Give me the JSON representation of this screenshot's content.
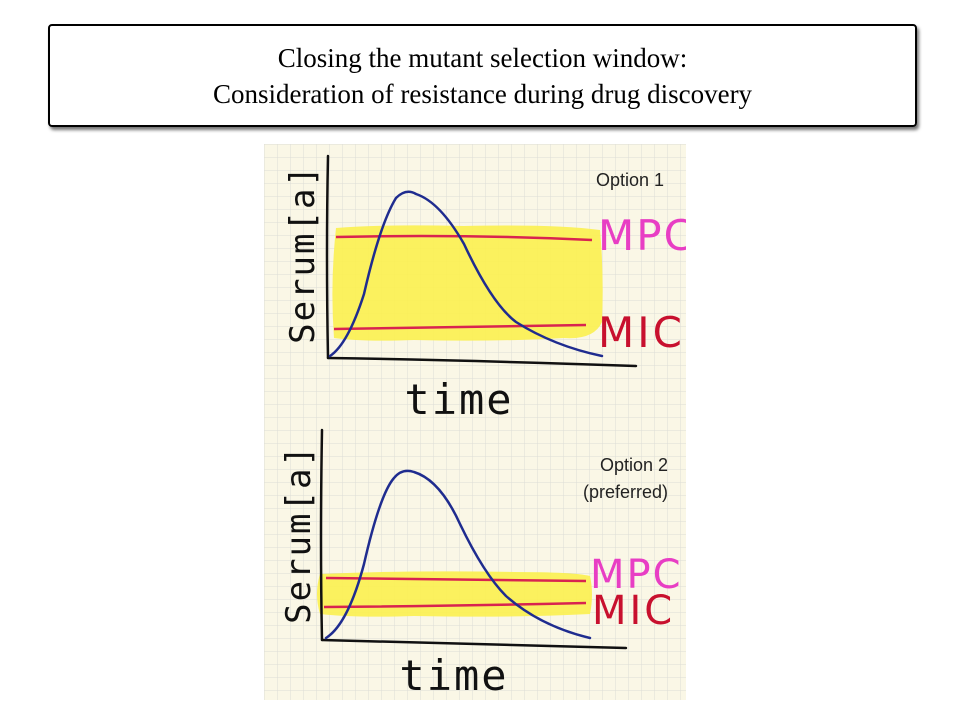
{
  "title": {
    "line1": "Closing the mutant selection window:",
    "line2": "Consideration of resistance during drug discovery"
  },
  "panels": [
    {
      "option_label": "Option 1",
      "ylabel": "Serum[a]",
      "xlabel": "time",
      "upper_line_label": "MPC",
      "lower_line_label": "MIC"
    },
    {
      "option_label_line1": "Option 2",
      "option_label_line2": "(preferred)",
      "ylabel": "Serum[a]",
      "xlabel": "time",
      "upper_line_label": "MPC",
      "lower_line_label": "MIC"
    }
  ],
  "colors": {
    "paper": "#faf7e6",
    "grid": "#dcdcd6",
    "window_fill": "#fbf04f",
    "curve": "#1f2c8f",
    "threshold_line": "#d82450",
    "mpc_label": "#e83ec4",
    "mic_label": "#c8102e",
    "axis": "#111111"
  }
}
